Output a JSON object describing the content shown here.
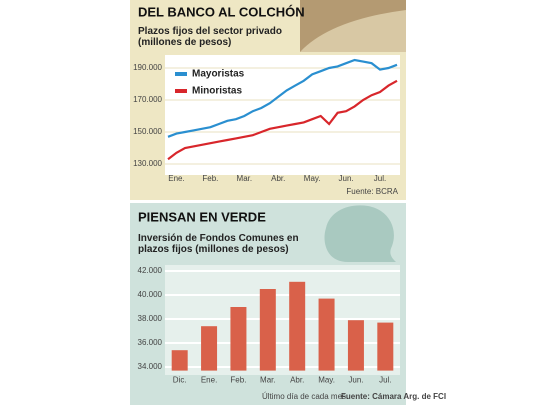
{
  "chart_data": [
    {
      "type": "line",
      "title": "DEL BANCO AL COLCHÓN",
      "subtitle": "Plazos fijos del sector privado (millones de pesos)",
      "categories": [
        null,
        "Ene.",
        null,
        null,
        null,
        "Feb.",
        null,
        null,
        null,
        "Mar.",
        null,
        null,
        null,
        "Abr.",
        null,
        null,
        null,
        "May.",
        null,
        null,
        null,
        "Jun.",
        null,
        null,
        null,
        "Jul.",
        null,
        null
      ],
      "series": [
        {
          "name": "Mayoristas",
          "color": "#2a8fd0",
          "values": [
            147000,
            149000,
            150000,
            151000,
            152000,
            153000,
            155000,
            157000,
            158000,
            160000,
            163000,
            165000,
            168000,
            172000,
            176000,
            179000,
            182000,
            186000,
            188000,
            190000,
            191000,
            193000,
            195000,
            194000,
            193000,
            189000,
            190000,
            192000
          ]
        },
        {
          "name": "Minoristas",
          "color": "#d8262b",
          "values": [
            133000,
            137000,
            140000,
            141000,
            142000,
            143000,
            144000,
            145000,
            146000,
            147000,
            148000,
            150000,
            152000,
            153000,
            154000,
            155000,
            156000,
            158000,
            160000,
            155000,
            162000,
            163000,
            166000,
            170000,
            173000,
            175000,
            179000,
            182000
          ]
        }
      ],
      "ylim": [
        125000,
        200000
      ],
      "yticks": [
        {
          "value": 130000,
          "label": "130.000"
        },
        {
          "value": 150000,
          "label": "150.000"
        },
        {
          "value": 170000,
          "label": "170.000"
        },
        {
          "value": 190000,
          "label": "190.000"
        }
      ],
      "legend": "upper left",
      "source": "Fuente: BCRA"
    },
    {
      "type": "bar",
      "title": "PIENSAN EN VERDE",
      "subtitle": "Inversión de Fondos Comunes en plazos fijos (millones de pesos)",
      "categories": [
        "Dic.",
        "Ene.",
        "Feb.",
        "Mar.",
        "Abr.",
        "May.",
        "Jun.",
        "Jul."
      ],
      "values": [
        35400,
        37400,
        39000,
        40500,
        41100,
        39700,
        37900,
        37700
      ],
      "color": "#d9614a",
      "ylim": [
        33700,
        42000
      ],
      "yticks": [
        {
          "value": 34000,
          "label": "34.000"
        },
        {
          "value": 36000,
          "label": "36.000"
        },
        {
          "value": 38000,
          "label": "38.000"
        },
        {
          "value": 40000,
          "label": "40.000"
        },
        {
          "value": 42000,
          "label": "42.000"
        }
      ],
      "note": "Último día de cada mes.",
      "source": "Fuente: Cámara Arg. de FCI"
    }
  ]
}
